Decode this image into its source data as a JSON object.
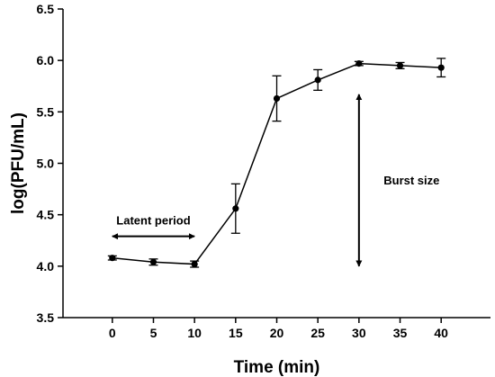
{
  "chart_data": {
    "type": "line",
    "title": "",
    "xlabel": "Time (min)",
    "ylabel": "log(PFU/mL)",
    "xlim": [
      -6,
      46
    ],
    "ylim": [
      3.5,
      6.5
    ],
    "x_ticks": [
      0,
      5,
      10,
      15,
      20,
      25,
      30,
      35,
      40
    ],
    "x_tick_labels": [
      "0",
      "5",
      "10",
      "15",
      "20",
      "25",
      "30",
      "35",
      "40"
    ],
    "y_ticks": [
      3.5,
      4.0,
      4.5,
      5.0,
      5.5,
      6.0,
      6.5
    ],
    "y_tick_labels": [
      "3.5",
      "4.0",
      "4.5",
      "5.0",
      "5.5",
      "6.0",
      "6.5"
    ],
    "grid": false,
    "series": [
      {
        "x": [
          0,
          5,
          10,
          15,
          20,
          25,
          30,
          35,
          40
        ],
        "values": [
          4.08,
          4.04,
          4.02,
          4.56,
          5.63,
          5.81,
          5.97,
          5.95,
          5.93
        ],
        "error": [
          0.02,
          0.03,
          0.03,
          0.24,
          0.22,
          0.1,
          0.02,
          0.03,
          0.09
        ],
        "color": "#000000"
      }
    ],
    "annotations": [
      {
        "text": "Latent period",
        "arrow": "horizontal",
        "from": [
          0,
          4.29
        ],
        "to": [
          10,
          4.29
        ],
        "label_at": [
          10,
          4.45
        ]
      },
      {
        "text": "Burst size",
        "arrow": "vertical",
        "from": [
          30,
          4.0
        ],
        "to": [
          30,
          5.67
        ],
        "label_at": [
          33,
          4.84
        ]
      }
    ]
  }
}
